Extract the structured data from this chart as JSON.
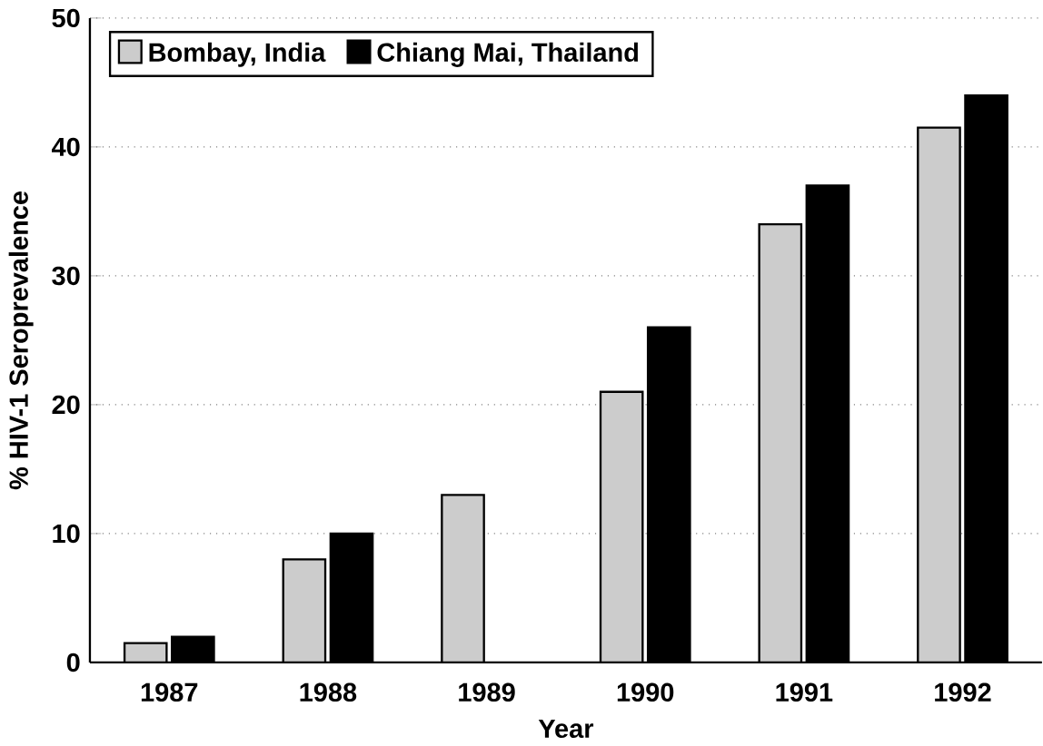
{
  "chart_data": {
    "type": "bar",
    "xlabel": "Year",
    "ylabel": "% HIV-1 Seroprevalence",
    "categories": [
      "1987",
      "1988",
      "1989",
      "1990",
      "1991",
      "1992"
    ],
    "series": [
      {
        "name": "Bombay, India",
        "color": "#cccccc",
        "values": [
          1.5,
          8,
          13,
          21,
          34,
          41.5
        ]
      },
      {
        "name": "Chiang Mai, Thailand",
        "color": "#000000",
        "values": [
          2,
          10,
          null,
          26,
          37,
          44
        ]
      }
    ],
    "ylim": [
      0,
      50
    ],
    "yticks": [
      0,
      10,
      20,
      30,
      40,
      50
    ],
    "grid": "y",
    "legend": "top left"
  }
}
